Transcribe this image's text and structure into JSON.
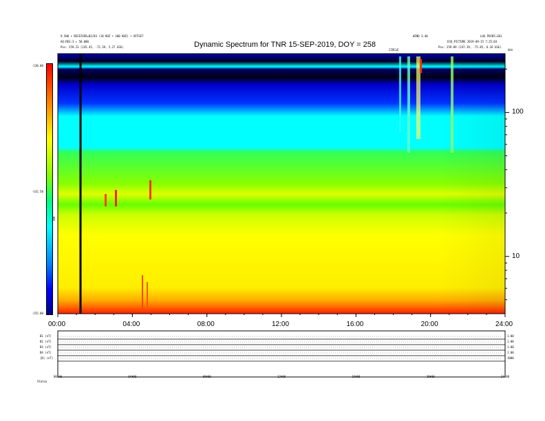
{
  "header": {
    "title": "Dynamic Spectrum for TNR 15-SEP-2019, DOY = 258",
    "left_line1": "9.500 • RECEIVER=B2/B3 (10 KHZ • 100 KHZ) • OFFSET",
    "left_line2": "AQ:RES:3 ≈ 50.000",
    "left_pos": "Pos:   259.23 (245.45, -72.39, 5.27 GSE)",
    "right_top_a": "WIND 3.40",
    "right_top_b": "LOG POINT=301",
    "right_line2": "ESO_PICTURE 2019-09-15 7:25:03",
    "right_pos": "Pos:   259.09 (247.39, -75.85, 6.26 GSE)",
    "small_marker": "CIRCLE",
    "right_corner": "kHz"
  },
  "colorbar": {
    "top_label": "-130.00",
    "mid_label": "-142.50",
    "bottom_label": "-155.00",
    "unit_label": "TNR"
  },
  "chart_data": {
    "type": "heatmap",
    "title": "Dynamic Spectrum for TNR 15-SEP-2019, DOY = 258",
    "x_ticks": [
      "00:00",
      "04:00",
      "08:00",
      "12:00",
      "16:00",
      "20:00",
      "24:00"
    ],
    "x_range_hours": [
      0,
      24
    ],
    "y_scale": "log",
    "y_ticks": [
      "100",
      "10"
    ],
    "y_tick_values_khz": [
      100,
      10
    ],
    "y_range_khz": [
      4,
      256
    ],
    "color_range": [
      -155.0,
      -130.0
    ],
    "color_ticks": [
      -130.0,
      -142.5,
      -155.0
    ],
    "colormap": [
      "#00008b",
      "#0000ff",
      "#00ffff",
      "#00ff00",
      "#ffff00",
      "#ff0000"
    ],
    "vertical_marker_hours": 1.2,
    "bands_khz_approx": [
      {
        "from": 4,
        "to": 5,
        "level": -130,
        "color": "#ff2000"
      },
      {
        "from": 5,
        "to": 20,
        "level": -135,
        "color": "#ffff00"
      },
      {
        "from": 20,
        "to": 45,
        "level": -140,
        "color": "#66ff00"
      },
      {
        "from": 45,
        "to": 100,
        "level": -145,
        "color": "#00ffff"
      },
      {
        "from": 100,
        "to": 256,
        "level": -152,
        "color": "#0000cc"
      }
    ]
  },
  "bottom_panel": {
    "row_labels": [
      "B1 (nT)",
      "B2 (nT)",
      "B3 (nT)",
      "B4 (nT)",
      "|B| (nT)"
    ],
    "right_labels": [
      "1.00",
      "1.00",
      "1.00",
      "1.00",
      "1000"
    ],
    "x_ticks": [
      "00:00",
      "04:00",
      "08:00",
      "12:00",
      "16:00",
      "20:00",
      "24:00"
    ],
    "footer_label": "Status"
  }
}
